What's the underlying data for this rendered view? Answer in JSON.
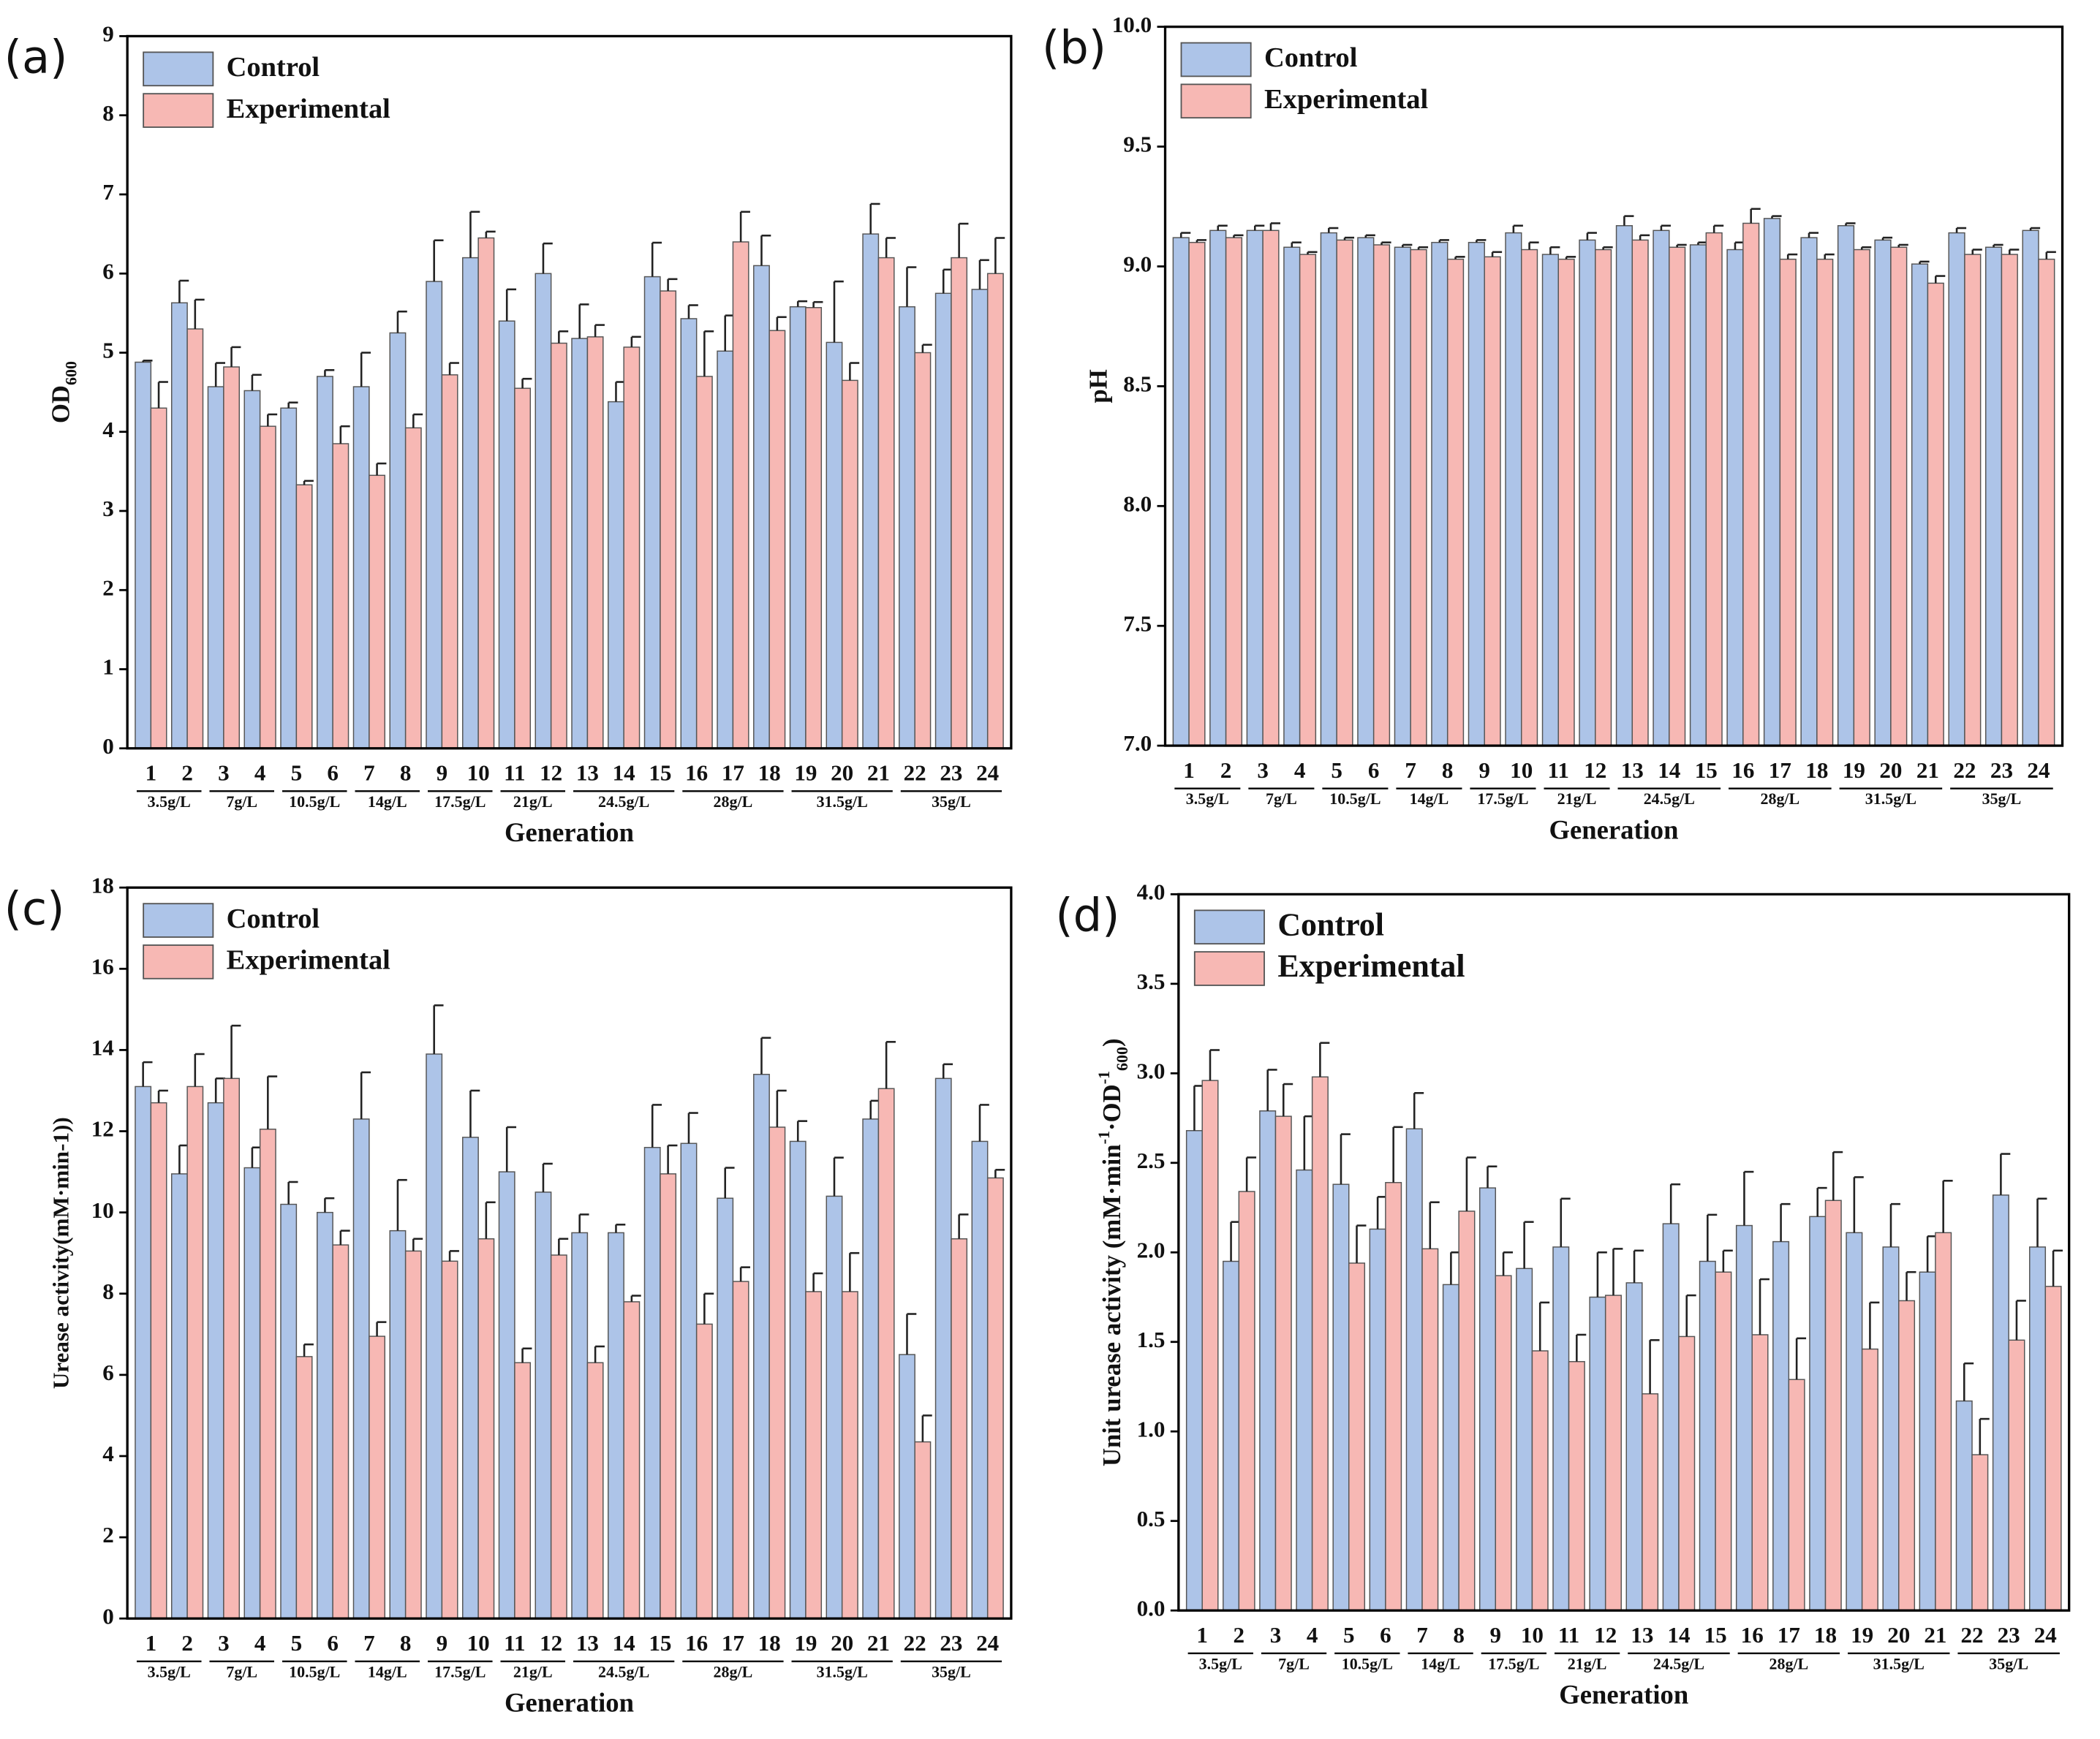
{
  "chart_data": [
    {
      "type": "bar",
      "panel": "(a)",
      "ylabel_parts": [
        {
          "text": "OD",
          "shift": "none"
        },
        {
          "text": "600",
          "shift": "sub"
        }
      ],
      "xlabel": "Generation",
      "categories": [
        "1",
        "2",
        "3",
        "4",
        "5",
        "6",
        "7",
        "8",
        "9",
        "10",
        "11",
        "12",
        "13",
        "14",
        "15",
        "16",
        "17",
        "18",
        "19",
        "20",
        "21",
        "22",
        "23",
        "24"
      ],
      "group_labels": [
        "3.5g/L",
        "3.5g/L",
        "7g/L",
        "7g/L",
        "10.5g/L",
        "10.5g/L",
        "14g/L",
        "14g/L",
        "17.5g/L",
        "17.5g/L",
        "21g/L",
        "21g/L",
        "24.5g/L",
        "24.5g/L",
        "24.5g/L",
        "28g/L",
        "28g/L",
        "28g/L",
        "31.5g/L",
        "31.5g/L",
        "31.5g/L",
        "35g/L",
        "35g/L",
        "35g/L"
      ],
      "series": [
        {
          "name": "Control",
          "color": "#adc4e8",
          "values": [
            4.88,
            5.63,
            4.57,
            4.52,
            4.3,
            4.7,
            4.57,
            5.25,
            5.9,
            6.2,
            5.4,
            6.0,
            5.18,
            4.38,
            5.96,
            5.43,
            5.02,
            6.1,
            5.58,
            5.13,
            6.5,
            5.58,
            5.75,
            5.8
          ],
          "errors": [
            0.02,
            0.28,
            0.3,
            0.2,
            0.07,
            0.08,
            0.43,
            0.27,
            0.52,
            0.58,
            0.4,
            0.38,
            0.43,
            0.25,
            0.43,
            0.17,
            0.45,
            0.38,
            0.07,
            0.77,
            0.38,
            0.5,
            0.3,
            0.37
          ]
        },
        {
          "name": "Experimental",
          "color": "#f7b8b4",
          "values": [
            4.3,
            5.3,
            4.82,
            4.07,
            3.33,
            3.85,
            3.45,
            4.05,
            4.72,
            6.45,
            4.55,
            5.12,
            5.2,
            5.07,
            5.78,
            4.7,
            6.4,
            5.28,
            5.57,
            4.65,
            6.2,
            5.0,
            6.2,
            6.0
          ],
          "errors": [
            0.33,
            0.37,
            0.25,
            0.15,
            0.05,
            0.22,
            0.15,
            0.17,
            0.15,
            0.08,
            0.12,
            0.15,
            0.15,
            0.13,
            0.15,
            0.57,
            0.38,
            0.17,
            0.07,
            0.22,
            0.25,
            0.1,
            0.43,
            0.45
          ]
        }
      ],
      "ylim": [
        0,
        9
      ],
      "yticks": [
        0,
        1,
        2,
        3,
        4,
        5,
        6,
        7,
        8,
        9
      ],
      "legend": "upper left"
    },
    {
      "type": "bar",
      "panel": "(b)",
      "ylabel_parts": [
        {
          "text": "pH",
          "shift": "none"
        }
      ],
      "xlabel": "Generation",
      "categories": [
        "1",
        "2",
        "3",
        "4",
        "5",
        "6",
        "7",
        "8",
        "9",
        "10",
        "11",
        "12",
        "13",
        "14",
        "15",
        "16",
        "17",
        "18",
        "19",
        "20",
        "21",
        "22",
        "23",
        "24"
      ],
      "group_labels": [
        "3.5g/L",
        "3.5g/L",
        "7g/L",
        "7g/L",
        "10.5g/L",
        "10.5g/L",
        "14g/L",
        "14g/L",
        "17.5g/L",
        "17.5g/L",
        "21g/L",
        "21g/L",
        "24.5g/L",
        "24.5g/L",
        "24.5g/L",
        "28g/L",
        "28g/L",
        "28g/L",
        "31.5g/L",
        "31.5g/L",
        "31.5g/L",
        "35g/L",
        "35g/L",
        "35g/L"
      ],
      "series": [
        {
          "name": "Control",
          "color": "#adc4e8",
          "values": [
            9.12,
            9.15,
            9.15,
            9.08,
            9.14,
            9.12,
            9.08,
            9.1,
            9.1,
            9.14,
            9.05,
            9.11,
            9.17,
            9.15,
            9.09,
            9.07,
            9.2,
            9.12,
            9.17,
            9.11,
            9.01,
            9.14,
            9.08,
            9.15
          ],
          "errors": [
            0.02,
            0.02,
            0.02,
            0.02,
            0.02,
            0.01,
            0.01,
            0.01,
            0.01,
            0.03,
            0.03,
            0.03,
            0.04,
            0.02,
            0.01,
            0.03,
            0.01,
            0.02,
            0.01,
            0.01,
            0.01,
            0.02,
            0.01,
            0.01
          ]
        },
        {
          "name": "Experimental",
          "color": "#f7b8b4",
          "values": [
            9.1,
            9.12,
            9.15,
            9.05,
            9.11,
            9.09,
            9.07,
            9.03,
            9.04,
            9.07,
            9.03,
            9.07,
            9.11,
            9.08,
            9.14,
            9.18,
            9.03,
            9.03,
            9.07,
            9.08,
            8.93,
            9.05,
            9.05,
            9.03
          ],
          "errors": [
            0.01,
            0.01,
            0.03,
            0.01,
            0.01,
            0.01,
            0.01,
            0.01,
            0.02,
            0.03,
            0.01,
            0.01,
            0.02,
            0.01,
            0.03,
            0.06,
            0.02,
            0.02,
            0.01,
            0.01,
            0.03,
            0.02,
            0.02,
            0.03
          ]
        }
      ],
      "ylim": [
        7,
        10
      ],
      "yticks": [
        {
          "value": 7,
          "label": "7.0"
        },
        7.5,
        {
          "value": 8,
          "label": "8.0"
        },
        8.5,
        {
          "value": 9,
          "label": "9.0"
        },
        9.5,
        {
          "value": 10,
          "label": "10.0"
        }
      ],
      "legend": "upper left"
    },
    {
      "type": "bar",
      "panel": "(c)",
      "ylabel_parts": [
        {
          "text": "Urease activity(mM·min-1))",
          "shift": "none"
        }
      ],
      "xlabel": "Generation",
      "categories": [
        "1",
        "2",
        "3",
        "4",
        "5",
        "6",
        "7",
        "8",
        "9",
        "10",
        "11",
        "12",
        "13",
        "14",
        "15",
        "16",
        "17",
        "18",
        "19",
        "20",
        "21",
        "22",
        "23",
        "24"
      ],
      "group_labels": [
        "3.5g/L",
        "3.5g/L",
        "7g/L",
        "7g/L",
        "10.5g/L",
        "10.5g/L",
        "14g/L",
        "14g/L",
        "17.5g/L",
        "17.5g/L",
        "21g/L",
        "21g/L",
        "24.5g/L",
        "24.5g/L",
        "24.5g/L",
        "28g/L",
        "28g/L",
        "28g/L",
        "31.5g/L",
        "31.5g/L",
        "31.5g/L",
        "35g/L",
        "35g/L",
        "35g/L"
      ],
      "series": [
        {
          "name": "Control",
          "color": "#adc4e8",
          "values": [
            13.1,
            10.95,
            12.7,
            11.1,
            10.2,
            10.0,
            12.3,
            9.55,
            13.9,
            11.85,
            11.0,
            10.5,
            9.5,
            9.5,
            11.6,
            11.7,
            10.35,
            13.4,
            11.75,
            10.4,
            12.3,
            6.5,
            13.3,
            11.75
          ],
          "errors": [
            0.6,
            0.7,
            0.6,
            0.5,
            0.55,
            0.35,
            1.15,
            1.25,
            1.2,
            1.15,
            1.1,
            0.7,
            0.45,
            0.2,
            1.05,
            0.75,
            0.75,
            0.9,
            0.5,
            0.95,
            0.45,
            1.0,
            0.35,
            0.9
          ]
        },
        {
          "name": "Experimental",
          "color": "#f7b8b4",
          "values": [
            12.7,
            13.1,
            13.3,
            12.05,
            6.45,
            9.2,
            6.95,
            9.05,
            8.8,
            9.35,
            6.3,
            8.95,
            6.3,
            7.8,
            10.95,
            7.25,
            8.3,
            12.1,
            8.05,
            8.05,
            13.05,
            4.35,
            9.35,
            10.85
          ],
          "errors": [
            0.3,
            0.8,
            1.3,
            1.3,
            0.3,
            0.35,
            0.35,
            0.3,
            0.25,
            0.9,
            0.35,
            0.4,
            0.4,
            0.15,
            0.7,
            0.75,
            0.35,
            0.9,
            0.45,
            0.95,
            1.15,
            0.65,
            0.6,
            0.2
          ]
        }
      ],
      "ylim": [
        0,
        18
      ],
      "yticks": [
        0,
        2,
        4,
        6,
        8,
        10,
        12,
        14,
        16,
        18
      ],
      "legend": "upper left"
    },
    {
      "type": "bar",
      "panel": "(d)",
      "ylabel_parts": [
        {
          "text": "Unit urease activity (mM·min",
          "shift": "none"
        },
        {
          "text": "-1",
          "shift": "sup"
        },
        {
          "text": "·OD",
          "shift": "none"
        },
        {
          "text": "-1",
          "shift": "sup"
        },
        {
          "text": "600",
          "shift": "sub"
        },
        {
          "text": ")",
          "shift": "none"
        }
      ],
      "xlabel": "Generation",
      "categories": [
        "1",
        "2",
        "3",
        "4",
        "5",
        "6",
        "7",
        "8",
        "9",
        "10",
        "11",
        "12",
        "13",
        "14",
        "15",
        "16",
        "17",
        "18",
        "19",
        "20",
        "21",
        "22",
        "23",
        "24"
      ],
      "group_labels": [
        "3.5g/L",
        "3.5g/L",
        "7g/L",
        "7g/L",
        "10.5g/L",
        "10.5g/L",
        "14g/L",
        "14g/L",
        "17.5g/L",
        "17.5g/L",
        "21g/L",
        "21g/L",
        "24.5g/L",
        "24.5g/L",
        "24.5g/L",
        "28g/L",
        "28g/L",
        "28g/L",
        "31.5g/L",
        "31.5g/L",
        "31.5g/L",
        "35g/L",
        "35g/L",
        "35g/L"
      ],
      "series": [
        {
          "name": "Control",
          "color": "#adc4e8",
          "values": [
            2.68,
            1.95,
            2.79,
            2.46,
            2.38,
            2.13,
            2.69,
            1.82,
            2.36,
            1.91,
            2.03,
            1.75,
            1.83,
            2.16,
            1.95,
            2.15,
            2.06,
            2.2,
            2.11,
            2.03,
            1.89,
            1.17,
            2.32,
            2.03
          ],
          "errors": [
            0.25,
            0.22,
            0.23,
            0.3,
            0.28,
            0.18,
            0.2,
            0.18,
            0.12,
            0.26,
            0.27,
            0.25,
            0.18,
            0.22,
            0.26,
            0.3,
            0.21,
            0.16,
            0.31,
            0.24,
            0.2,
            0.21,
            0.23,
            0.27
          ]
        },
        {
          "name": "Experimental",
          "color": "#f7b8b4",
          "values": [
            2.96,
            2.34,
            2.76,
            2.98,
            1.94,
            2.39,
            2.02,
            2.23,
            1.87,
            1.45,
            1.39,
            1.76,
            1.21,
            1.53,
            1.89,
            1.54,
            1.29,
            2.29,
            1.46,
            1.73,
            2.11,
            0.87,
            1.51,
            1.81
          ],
          "errors": [
            0.17,
            0.19,
            0.18,
            0.19,
            0.21,
            0.31,
            0.26,
            0.3,
            0.13,
            0.27,
            0.15,
            0.26,
            0.3,
            0.23,
            0.12,
            0.31,
            0.23,
            0.27,
            0.26,
            0.16,
            0.29,
            0.2,
            0.22,
            0.2
          ]
        }
      ],
      "ylim": [
        0,
        4
      ],
      "yticks": [
        {
          "value": 0,
          "label": "0.0"
        },
        0.5,
        {
          "value": 1,
          "label": "1.0"
        },
        1.5,
        {
          "value": 2,
          "label": "2.0"
        },
        2.5,
        {
          "value": 3,
          "label": "3.0"
        },
        3.5,
        {
          "value": 4,
          "label": "4.0"
        }
      ],
      "legend": "upper left"
    }
  ]
}
